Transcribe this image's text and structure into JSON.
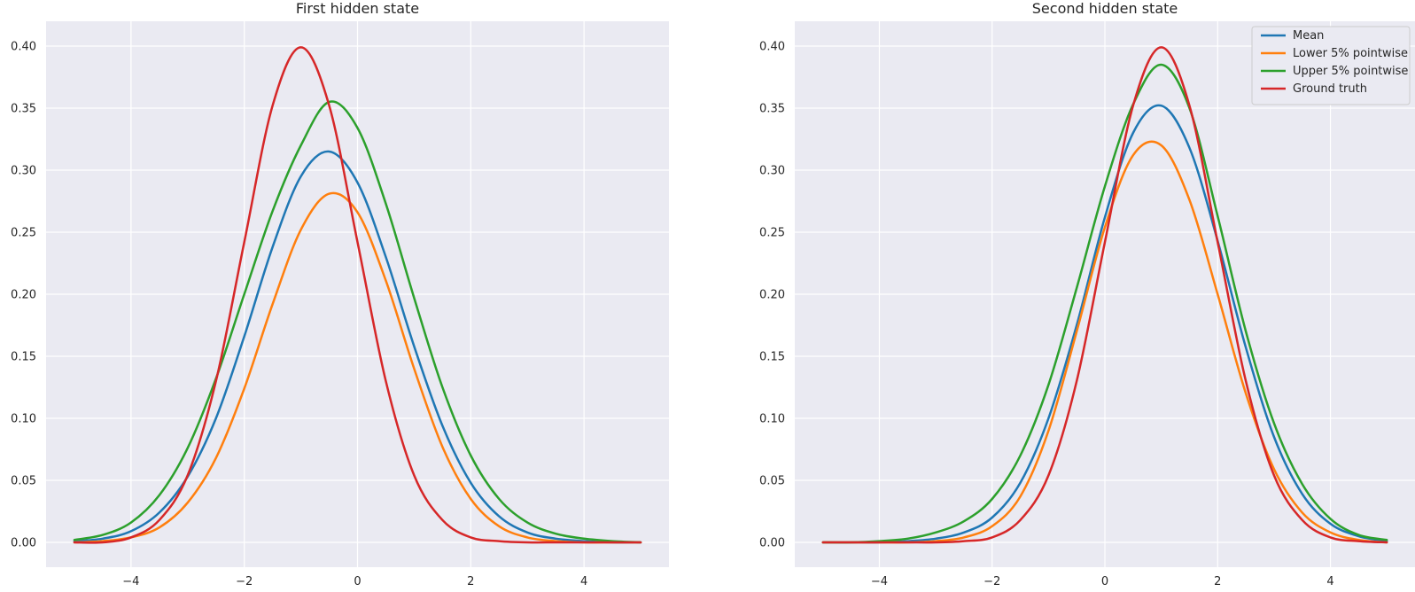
{
  "chart_data": [
    {
      "type": "line",
      "title": "First hidden state",
      "xlabel": "",
      "ylabel": "",
      "xlim": [
        -5.5,
        5.5
      ],
      "ylim": [
        -0.02,
        0.42
      ],
      "xticks": [
        -4,
        -2,
        0,
        2,
        4
      ],
      "xtick_labels": [
        "−4",
        "−2",
        "0",
        "2",
        "4"
      ],
      "yticks": [
        0.0,
        0.05,
        0.1,
        0.15,
        0.2,
        0.25,
        0.3,
        0.35,
        0.4
      ],
      "ytick_labels": [
        "0.00",
        "0.05",
        "0.10",
        "0.15",
        "0.20",
        "0.25",
        "0.30",
        "0.35",
        "0.40"
      ],
      "grid": true,
      "legend": null,
      "x": [
        -5.0,
        -4.5,
        -4.0,
        -3.5,
        -3.0,
        -2.5,
        -2.0,
        -1.5,
        -1.0,
        -0.5,
        0.0,
        0.5,
        1.0,
        1.5,
        2.0,
        2.5,
        3.0,
        3.5,
        4.0,
        4.5,
        5.0
      ],
      "series": [
        {
          "name": "Mean",
          "color": "#1f77b4",
          "values": [
            0.001,
            0.003,
            0.009,
            0.024,
            0.053,
            0.1,
            0.166,
            0.238,
            0.295,
            0.315,
            0.29,
            0.23,
            0.158,
            0.094,
            0.048,
            0.021,
            0.008,
            0.003,
            0.001,
            0.0,
            0.0
          ]
        },
        {
          "name": "Lower 5% pointwise",
          "color": "#ff7f0e",
          "values": [
            0.0,
            0.001,
            0.004,
            0.012,
            0.032,
            0.068,
            0.124,
            0.192,
            0.252,
            0.281,
            0.266,
            0.211,
            0.14,
            0.077,
            0.035,
            0.013,
            0.004,
            0.001,
            0.0,
            0.0,
            0.0
          ]
        },
        {
          "name": "Upper 5% pointwise",
          "color": "#2ca02c",
          "values": [
            0.002,
            0.006,
            0.016,
            0.038,
            0.076,
            0.132,
            0.2,
            0.267,
            0.32,
            0.355,
            0.334,
            0.273,
            0.197,
            0.125,
            0.07,
            0.035,
            0.016,
            0.007,
            0.003,
            0.001,
            0.0
          ]
        },
        {
          "name": "Ground truth",
          "color": "#d62728",
          "values": [
            0.0,
            0.0,
            0.004,
            0.018,
            0.054,
            0.13,
            0.242,
            0.352,
            0.399,
            0.352,
            0.242,
            0.13,
            0.054,
            0.018,
            0.004,
            0.001,
            0.0,
            0.0,
            0.0,
            0.0,
            0.0
          ]
        }
      ]
    },
    {
      "type": "line",
      "title": "Second hidden state",
      "xlabel": "",
      "ylabel": "",
      "xlim": [
        -5.5,
        5.5
      ],
      "ylim": [
        -0.02,
        0.42
      ],
      "xticks": [
        -4,
        -2,
        0,
        2,
        4
      ],
      "xtick_labels": [
        "−4",
        "−2",
        "0",
        "2",
        "4"
      ],
      "yticks": [
        0.0,
        0.05,
        0.1,
        0.15,
        0.2,
        0.25,
        0.3,
        0.35,
        0.4
      ],
      "ytick_labels": [
        "0.00",
        "0.05",
        "0.10",
        "0.15",
        "0.20",
        "0.25",
        "0.30",
        "0.35",
        "0.40"
      ],
      "grid": true,
      "legend": "top-right",
      "x": [
        -5.0,
        -4.5,
        -4.0,
        -3.5,
        -3.0,
        -2.5,
        -2.0,
        -1.5,
        -1.0,
        -0.5,
        0.0,
        0.5,
        1.0,
        1.5,
        2.0,
        2.5,
        3.0,
        3.5,
        4.0,
        4.5,
        5.0
      ],
      "series": [
        {
          "name": "Mean",
          "color": "#1f77b4",
          "values": [
            0.0,
            0.0,
            0.0,
            0.001,
            0.003,
            0.008,
            0.02,
            0.048,
            0.1,
            0.175,
            0.262,
            0.33,
            0.352,
            0.318,
            0.243,
            0.157,
            0.085,
            0.039,
            0.015,
            0.005,
            0.001
          ]
        },
        {
          "name": "Lower 5% pointwise",
          "color": "#ff7f0e",
          "values": [
            0.0,
            0.0,
            0.0,
            0.0,
            0.001,
            0.004,
            0.013,
            0.037,
            0.09,
            0.17,
            0.254,
            0.312,
            0.32,
            0.276,
            0.2,
            0.12,
            0.059,
            0.024,
            0.008,
            0.002,
            0.0
          ]
        },
        {
          "name": "Upper 5% pointwise",
          "color": "#2ca02c",
          "values": [
            0.0,
            0.0,
            0.001,
            0.003,
            0.008,
            0.017,
            0.035,
            0.07,
            0.127,
            0.205,
            0.287,
            0.353,
            0.385,
            0.35,
            0.263,
            0.17,
            0.096,
            0.047,
            0.019,
            0.006,
            0.002
          ]
        },
        {
          "name": "Ground truth",
          "color": "#d62728",
          "values": [
            0.0,
            0.0,
            0.0,
            0.0,
            0.0,
            0.001,
            0.004,
            0.018,
            0.054,
            0.13,
            0.242,
            0.352,
            0.399,
            0.352,
            0.242,
            0.13,
            0.054,
            0.018,
            0.004,
            0.001,
            0.0
          ]
        }
      ]
    }
  ]
}
